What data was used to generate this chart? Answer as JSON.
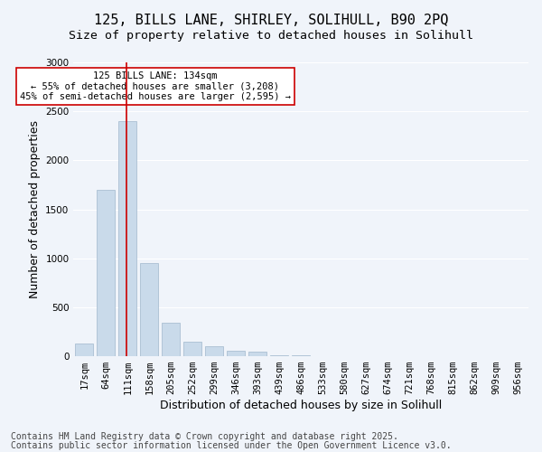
{
  "title_line1": "125, BILLS LANE, SHIRLEY, SOLIHULL, B90 2PQ",
  "title_line2": "Size of property relative to detached houses in Solihull",
  "xlabel": "Distribution of detached houses by size in Solihull",
  "ylabel": "Number of detached properties",
  "categories": [
    "17sqm",
    "64sqm",
    "111sqm",
    "158sqm",
    "205sqm",
    "252sqm",
    "299sqm",
    "346sqm",
    "393sqm",
    "439sqm",
    "486sqm",
    "533sqm",
    "580sqm",
    "627sqm",
    "674sqm",
    "721sqm",
    "768sqm",
    "815sqm",
    "862sqm",
    "909sqm",
    "956sqm"
  ],
  "values": [
    130,
    1700,
    2400,
    950,
    340,
    145,
    100,
    55,
    45,
    10,
    6,
    4,
    3,
    2,
    1,
    1,
    1,
    0,
    0,
    0,
    0
  ],
  "bar_color": "#c9daea",
  "bar_edge_color": "#a0b8cc",
  "highlight_index": 2,
  "highlight_line_color": "#cc0000",
  "annotation_text": "125 BILLS LANE: 134sqm\n← 55% of detached houses are smaller (3,208)\n45% of semi-detached houses are larger (2,595) →",
  "annotation_box_color": "#ffffff",
  "annotation_box_edge": "#cc0000",
  "ylim": [
    0,
    3000
  ],
  "yticks": [
    0,
    500,
    1000,
    1500,
    2000,
    2500,
    3000
  ],
  "footer_line1": "Contains HM Land Registry data © Crown copyright and database right 2025.",
  "footer_line2": "Contains public sector information licensed under the Open Government Licence v3.0.",
  "background_color": "#f0f4fa",
  "grid_color": "#ffffff",
  "title_fontsize": 11,
  "axis_fontsize": 9,
  "tick_fontsize": 7.5,
  "footer_fontsize": 7
}
